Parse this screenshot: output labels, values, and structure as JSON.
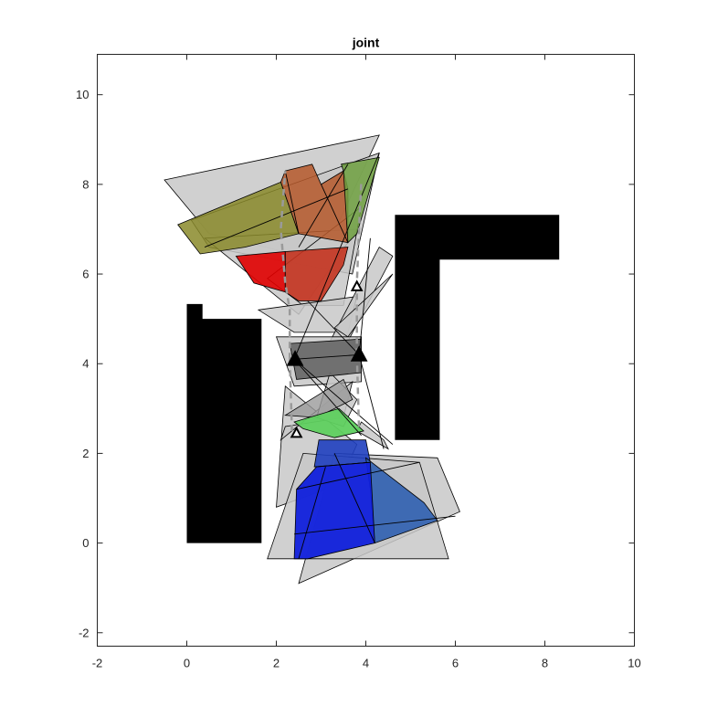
{
  "chart_data": {
    "type": "scatter",
    "title": "joint",
    "xlabel": "",
    "ylabel": "",
    "xlim": [
      -2,
      10
    ],
    "ylim": [
      -2.3,
      10.9
    ],
    "xticks": [
      -2,
      0,
      2,
      4,
      6,
      8,
      10
    ],
    "yticks": [
      -2,
      0,
      2,
      4,
      6,
      8,
      10
    ],
    "grid": false,
    "obstacles": [
      {
        "color": "#000000",
        "points": [
          [
            0,
            0
          ],
          [
            1.67,
            0
          ],
          [
            1.67,
            5.0
          ],
          [
            0.35,
            5.0
          ],
          [
            0.35,
            5.33
          ],
          [
            0,
            5.33
          ]
        ]
      },
      {
        "color": "#000000",
        "points": [
          [
            4.65,
            2.3
          ],
          [
            5.65,
            2.3
          ],
          [
            5.65,
            6.32
          ],
          [
            8.32,
            6.32
          ],
          [
            8.32,
            7.32
          ],
          [
            4.65,
            7.32
          ]
        ]
      }
    ],
    "gray_regions": [
      {
        "points": [
          [
            -0.5,
            8.1
          ],
          [
            4.3,
            9.1
          ],
          [
            3.0,
            6.3
          ],
          [
            0.5,
            6.9
          ]
        ]
      },
      {
        "points": [
          [
            0.1,
            7.2
          ],
          [
            4.3,
            8.7
          ],
          [
            3.7,
            6.0
          ],
          [
            0.5,
            6.6
          ]
        ]
      },
      {
        "points": [
          [
            0.4,
            6.8
          ],
          [
            3.8,
            7.0
          ],
          [
            2.5,
            5.1
          ]
        ]
      },
      {
        "points": [
          [
            1.8,
            5.9
          ],
          [
            3.9,
            7.5
          ],
          [
            3.5,
            5.3
          ],
          [
            2.6,
            5.3
          ]
        ]
      },
      {
        "points": [
          [
            1.6,
            5.2
          ],
          [
            3.8,
            5.5
          ],
          [
            3.6,
            4.7
          ],
          [
            2.4,
            4.7
          ]
        ]
      },
      {
        "points": [
          [
            3.2,
            4.5
          ],
          [
            4.3,
            6.6
          ],
          [
            4.6,
            6.4
          ],
          [
            3.6,
            4.5
          ]
        ]
      },
      {
        "points": [
          [
            3.3,
            4.8
          ],
          [
            4.6,
            6.0
          ],
          [
            3.6,
            4.6
          ]
        ]
      },
      {
        "points": [
          [
            2.0,
            4.6
          ],
          [
            3.9,
            4.6
          ],
          [
            3.9,
            3.6
          ],
          [
            2.4,
            3.5
          ]
        ]
      },
      {
        "points": [
          [
            2.2,
            3.5
          ],
          [
            3.8,
            2.2
          ],
          [
            3.4,
            1.3
          ],
          [
            2.0,
            0.8
          ]
        ]
      },
      {
        "points": [
          [
            2.1,
            2.3
          ],
          [
            3.7,
            3.6
          ],
          [
            3.5,
            2.8
          ],
          [
            2.2,
            2.6
          ]
        ]
      },
      {
        "points": [
          [
            3.2,
            3.8
          ],
          [
            3.8,
            3.2
          ],
          [
            3.5,
            2.6
          ],
          [
            2.9,
            2.8
          ]
        ]
      },
      {
        "points": [
          [
            3.8,
            2.5
          ],
          [
            4.5,
            2.1
          ],
          [
            4.4,
            2.3
          ],
          [
            3.9,
            2.7
          ]
        ]
      },
      {
        "points": [
          [
            2.5,
            -0.9
          ],
          [
            6.1,
            0.7
          ],
          [
            5.6,
            1.9
          ],
          [
            3.3,
            2.0
          ]
        ]
      },
      {
        "points": [
          [
            1.8,
            -0.35
          ],
          [
            5.85,
            -0.35
          ],
          [
            5.2,
            1.8
          ],
          [
            2.6,
            2.0
          ]
        ]
      }
    ],
    "colored_regions": [
      {
        "name": "",
        "color": "#8a8a2a",
        "opacity": 0.85,
        "points": [
          [
            -0.2,
            7.1
          ],
          [
            2.1,
            8.05
          ],
          [
            2.5,
            6.9
          ],
          [
            1.3,
            6.6
          ],
          [
            0.3,
            6.45
          ]
        ]
      },
      {
        "name": "",
        "color": "#b5582a",
        "opacity": 0.85,
        "points": [
          [
            2.1,
            8.05
          ],
          [
            2.2,
            8.3
          ],
          [
            2.8,
            8.45
          ],
          [
            3.0,
            8.0
          ],
          [
            3.5,
            8.3
          ],
          [
            3.6,
            7.9
          ],
          [
            3.6,
            6.7
          ],
          [
            2.5,
            6.9
          ]
        ]
      },
      {
        "name": "",
        "color": "#6fa040",
        "opacity": 0.85,
        "points": [
          [
            3.45,
            8.45
          ],
          [
            4.3,
            8.6
          ],
          [
            3.8,
            6.9
          ],
          [
            3.6,
            6.7
          ],
          [
            3.5,
            8.3
          ]
        ]
      },
      {
        "name": "",
        "color": "#e00000",
        "opacity": 0.9,
        "points": [
          [
            1.1,
            6.4
          ],
          [
            2.2,
            6.5
          ],
          [
            2.2,
            5.6
          ],
          [
            1.5,
            5.8
          ]
        ]
      },
      {
        "name": "",
        "color": "#c4331f",
        "opacity": 0.9,
        "points": [
          [
            2.2,
            6.5
          ],
          [
            3.6,
            6.6
          ],
          [
            3.5,
            6.2
          ],
          [
            3.0,
            5.4
          ],
          [
            2.5,
            5.4
          ],
          [
            2.2,
            5.6
          ]
        ]
      },
      {
        "name": "",
        "color": "#6a6a6a",
        "opacity": 0.95,
        "points": [
          [
            2.3,
            4.45
          ],
          [
            3.9,
            4.55
          ],
          [
            3.9,
            3.8
          ],
          [
            2.45,
            3.65
          ]
        ]
      },
      {
        "name": "",
        "color": "#9a9a9a",
        "opacity": 0.8,
        "points": [
          [
            2.2,
            2.85
          ],
          [
            3.5,
            3.65
          ],
          [
            3.7,
            3.2
          ],
          [
            2.9,
            2.8
          ]
        ]
      },
      {
        "name": "",
        "color": "#5fd05f",
        "opacity": 0.95,
        "points": [
          [
            2.4,
            2.7
          ],
          [
            3.4,
            3.0
          ],
          [
            3.95,
            2.5
          ],
          [
            3.3,
            2.35
          ],
          [
            2.6,
            2.55
          ]
        ]
      },
      {
        "name": "",
        "color": "#1f3fbf",
        "opacity": 0.9,
        "points": [
          [
            2.95,
            2.3
          ],
          [
            4.0,
            2.3
          ],
          [
            4.1,
            1.8
          ],
          [
            2.85,
            1.7
          ]
        ]
      },
      {
        "name": "",
        "color": "#2f5fb0",
        "opacity": 0.9,
        "points": [
          [
            4.0,
            1.9
          ],
          [
            5.3,
            0.9
          ],
          [
            5.6,
            0.5
          ],
          [
            4.2,
            0.0
          ],
          [
            4.1,
            1.2
          ]
        ]
      },
      {
        "name": "",
        "color": "#1020dc",
        "opacity": 0.95,
        "points": [
          [
            2.45,
            1.2
          ],
          [
            2.9,
            1.7
          ],
          [
            4.1,
            1.8
          ],
          [
            4.2,
            0.0
          ],
          [
            2.7,
            -0.35
          ],
          [
            2.4,
            -0.35
          ]
        ]
      }
    ],
    "edges": [
      [
        [
          2.4,
          4.1
        ],
        [
          4.3,
          8.7
        ]
      ],
      [
        [
          2.4,
          4.1
        ],
        [
          3.85,
          4.2
        ]
      ],
      [
        [
          2.4,
          4.1
        ],
        [
          4.6,
          2.2
        ]
      ],
      [
        [
          2.4,
          4.1
        ],
        [
          3.9,
          2.4
        ]
      ],
      [
        [
          3.85,
          4.2
        ],
        [
          4.4,
          2.1
        ]
      ],
      [
        [
          3.85,
          4.2
        ],
        [
          4.1,
          6.8
        ]
      ],
      [
        [
          3.85,
          4.2
        ],
        [
          2.7,
          5.4
        ]
      ],
      [
        [
          2.5,
          6.6
        ],
        [
          3.6,
          8.45
        ]
      ],
      [
        [
          2.2,
          8.3
        ],
        [
          2.5,
          6.9
        ]
      ],
      [
        [
          3.0,
          8.0
        ],
        [
          3.6,
          6.7
        ]
      ],
      [
        [
          0.4,
          6.6
        ],
        [
          3.6,
          7.9
        ]
      ],
      [
        [
          2.85,
          1.7
        ],
        [
          4.1,
          1.8
        ]
      ],
      [
        [
          2.5,
          -0.35
        ],
        [
          3.1,
          1.7
        ]
      ],
      [
        [
          3.3,
          2.0
        ],
        [
          4.2,
          0.0
        ]
      ],
      [
        [
          2.4,
          0.2
        ],
        [
          6.0,
          0.6
        ]
      ],
      [
        [
          2.45,
          1.2
        ],
        [
          5.2,
          1.8
        ]
      ]
    ],
    "dashed_paths": [
      {
        "points": [
          [
            2.3,
            4.1
          ],
          [
            2.3,
            5.2
          ],
          [
            2.2,
            5.8
          ],
          [
            2.1,
            7.0
          ],
          [
            2.2,
            8.3
          ]
        ]
      },
      {
        "points": [
          [
            3.8,
            4.2
          ],
          [
            3.8,
            5.8
          ],
          [
            3.85,
            7.0
          ],
          [
            3.9,
            8.1
          ]
        ]
      },
      {
        "points": [
          [
            2.3,
            4.1
          ],
          [
            2.35,
            2.5
          ]
        ]
      },
      {
        "points": [
          [
            3.8,
            4.2
          ],
          [
            3.85,
            2.5
          ]
        ]
      }
    ],
    "markers": [
      {
        "x": 2.42,
        "y": 4.1,
        "style": "filled"
      },
      {
        "x": 3.85,
        "y": 4.2,
        "style": "filled"
      },
      {
        "x": 3.8,
        "y": 5.72,
        "style": "open"
      },
      {
        "x": 2.45,
        "y": 2.45,
        "style": "open"
      }
    ]
  }
}
